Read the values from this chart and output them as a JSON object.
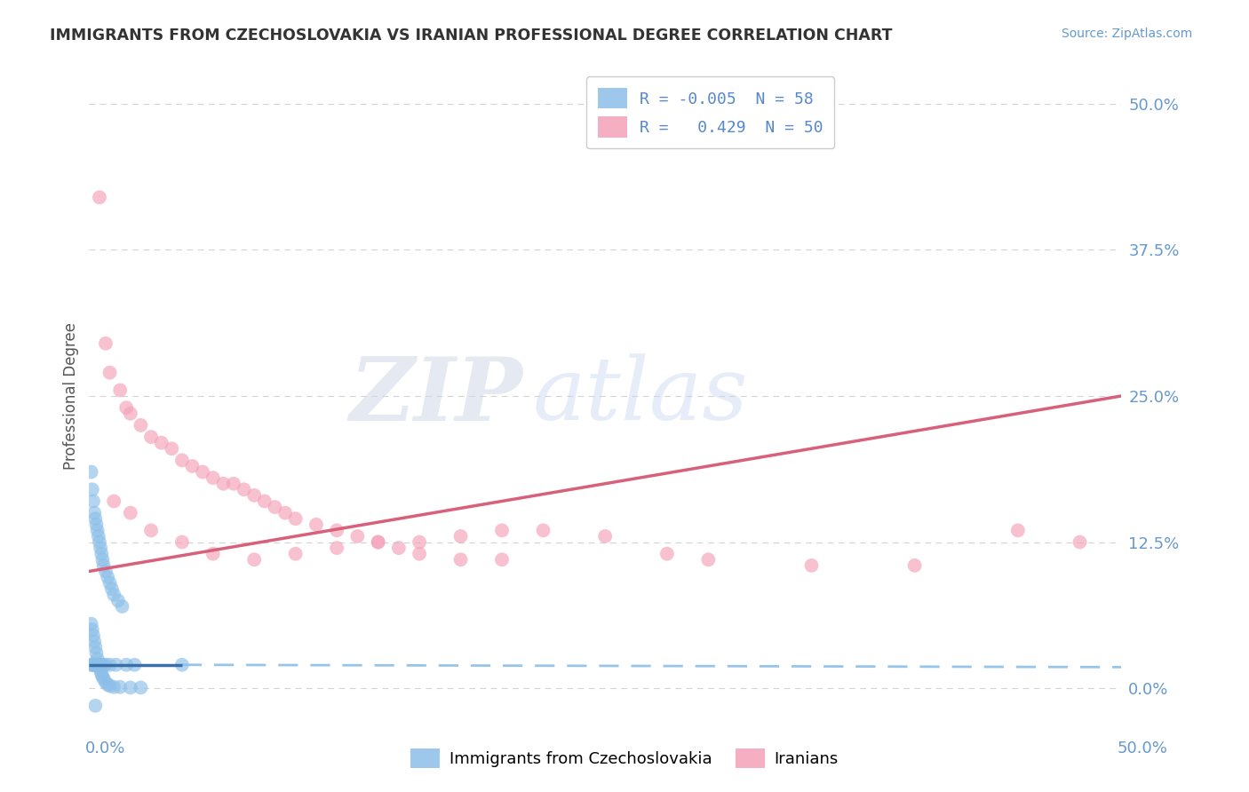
{
  "title": "IMMIGRANTS FROM CZECHOSLOVAKIA VS IRANIAN PROFESSIONAL DEGREE CORRELATION CHART",
  "source": "Source: ZipAtlas.com",
  "ylabel": "Professional Degree",
  "y_tick_labels": [
    "0.0%",
    "12.5%",
    "25.0%",
    "37.5%",
    "50.0%"
  ],
  "y_tick_values": [
    0.0,
    12.5,
    25.0,
    37.5,
    50.0
  ],
  "x_range": [
    0.0,
    50.0
  ],
  "y_range": [
    0.0,
    50.0
  ],
  "legend_label1": "Immigrants from Czechoslovakia",
  "legend_label2": "Iranians",
  "blue_color": "#8cbfe8",
  "pink_color": "#f4a0b8",
  "blue_line_color": "#3a6fa8",
  "pink_line_color": "#d9607a",
  "background_color": "#ffffff",
  "watermark_zip": "ZIP",
  "watermark_atlas": "atlas",
  "blue_scatter_x": [
    0.1,
    0.15,
    0.2,
    0.25,
    0.3,
    0.35,
    0.4,
    0.45,
    0.5,
    0.55,
    0.6,
    0.65,
    0.7,
    0.8,
    0.9,
    1.0,
    1.1,
    1.2,
    1.4,
    1.6,
    0.1,
    0.15,
    0.2,
    0.25,
    0.3,
    0.35,
    0.4,
    0.45,
    0.5,
    0.55,
    0.6,
    0.65,
    0.7,
    0.8,
    0.9,
    1.0,
    1.2,
    1.5,
    2.0,
    2.5,
    0.1,
    0.15,
    0.2,
    0.25,
    0.3,
    0.35,
    0.4,
    0.45,
    0.5,
    0.6,
    0.7,
    0.8,
    1.0,
    1.3,
    1.8,
    2.2,
    4.5,
    0.3
  ],
  "blue_scatter_y": [
    18.5,
    17.0,
    16.0,
    15.0,
    14.5,
    14.0,
    13.5,
    13.0,
    12.5,
    12.0,
    11.5,
    11.0,
    10.5,
    10.0,
    9.5,
    9.0,
    8.5,
    8.0,
    7.5,
    7.0,
    5.5,
    5.0,
    4.5,
    4.0,
    3.5,
    3.0,
    2.5,
    2.0,
    1.8,
    1.5,
    1.2,
    1.0,
    0.8,
    0.5,
    0.3,
    0.2,
    0.1,
    0.1,
    0.05,
    0.05,
    2.0,
    2.0,
    2.0,
    2.0,
    2.0,
    2.0,
    2.0,
    2.0,
    2.0,
    2.0,
    2.0,
    2.0,
    2.0,
    2.0,
    2.0,
    2.0,
    2.0,
    -1.5
  ],
  "pink_scatter_x": [
    0.5,
    0.8,
    1.0,
    1.5,
    1.8,
    2.0,
    2.5,
    3.0,
    3.5,
    4.0,
    4.5,
    5.0,
    5.5,
    6.0,
    6.5,
    7.0,
    7.5,
    8.0,
    8.5,
    9.0,
    9.5,
    10.0,
    11.0,
    12.0,
    13.0,
    14.0,
    15.0,
    16.0,
    18.0,
    20.0,
    22.0,
    25.0,
    28.0,
    30.0,
    35.0,
    40.0,
    45.0,
    48.0,
    1.2,
    2.0,
    3.0,
    4.5,
    6.0,
    8.0,
    10.0,
    12.0,
    14.0,
    16.0,
    18.0,
    20.0
  ],
  "pink_scatter_y": [
    42.0,
    29.5,
    27.0,
    25.5,
    24.0,
    23.5,
    22.5,
    21.5,
    21.0,
    20.5,
    19.5,
    19.0,
    18.5,
    18.0,
    17.5,
    17.5,
    17.0,
    16.5,
    16.0,
    15.5,
    15.0,
    14.5,
    14.0,
    13.5,
    13.0,
    12.5,
    12.0,
    11.5,
    11.0,
    11.0,
    13.5,
    13.0,
    11.5,
    11.0,
    10.5,
    10.5,
    13.5,
    12.5,
    16.0,
    15.0,
    13.5,
    12.5,
    11.5,
    11.0,
    11.5,
    12.0,
    12.5,
    12.5,
    13.0,
    13.5
  ],
  "pink_line_x0": 0.0,
  "pink_line_y0": 10.0,
  "pink_line_x1": 50.0,
  "pink_line_y1": 25.0,
  "blue_solid_x0": 0.0,
  "blue_solid_y0": 2.0,
  "blue_solid_x1": 4.5,
  "blue_solid_y1": 2.0,
  "blue_dash_x0": 4.5,
  "blue_dash_y0": 2.0,
  "blue_dash_x1": 50.0,
  "blue_dash_y1": 1.8
}
